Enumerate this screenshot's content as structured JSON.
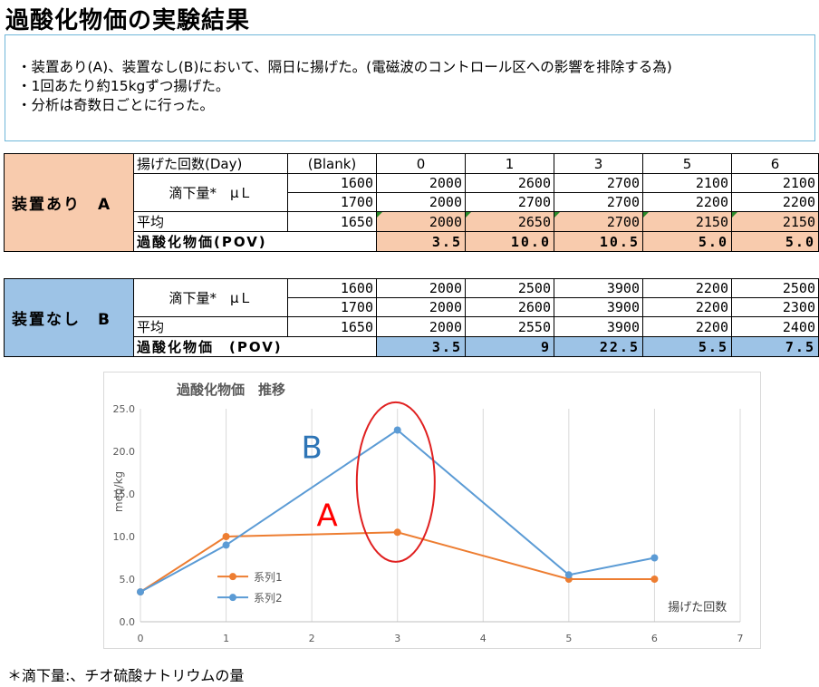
{
  "title": "過酸化物価の実験結果",
  "notes": [
    "・装置あり(A)、装置なし(B)において、隔日に揚げた。(電磁波のコントロール区への影響を排除する為)",
    "・1回あたり約15kgずつ揚げた。",
    "・分析は奇数日ごとに行った。"
  ],
  "table_a": {
    "group_label": "装置あり　A",
    "header_label": "揚げた回数(Day)",
    "blank_label": "(Blank)",
    "days": [
      "0",
      "1",
      "3",
      "5",
      "6"
    ],
    "titration_label": "滴下量*　μＬ",
    "row1": [
      "1600",
      "2000",
      "2600",
      "2700",
      "2100",
      "2100"
    ],
    "row2": [
      "1700",
      "2000",
      "2700",
      "2700",
      "2200",
      "2200"
    ],
    "avg_label": "平均",
    "avg": [
      "1650",
      "2000",
      "2650",
      "2700",
      "2150",
      "2150"
    ],
    "pov_label": "過酸化物価(POV)",
    "pov": [
      "3.5",
      "10.0",
      "10.5",
      "5.0",
      "5.0"
    ]
  },
  "table_b": {
    "group_label": "装置なし　B",
    "titration_label": "滴下量*　μＬ",
    "row1": [
      "1600",
      "2000",
      "2500",
      "3900",
      "2200",
      "2500"
    ],
    "row2": [
      "1700",
      "2000",
      "2600",
      "3900",
      "2200",
      "2300"
    ],
    "avg_label": "平均",
    "avg": [
      "1650",
      "2000",
      "2550",
      "3900",
      "2200",
      "2400"
    ],
    "pov_label": "過酸化物価　(POV)",
    "pov": [
      "3.5",
      "9",
      "22.5",
      "5.5",
      "7.5"
    ]
  },
  "chart_data": {
    "type": "line",
    "title": "過酸化物価　推移",
    "xlabel": "揚げた回数",
    "ylabel": "meq/kg",
    "xlim": [
      0,
      7
    ],
    "ylim": [
      0,
      25
    ],
    "xticks": [
      0,
      1,
      2,
      3,
      4,
      5,
      6,
      7
    ],
    "yticks": [
      0.0,
      5.0,
      10.0,
      15.0,
      20.0,
      25.0
    ],
    "grid": "vertical",
    "legend": "left-bottom",
    "series": [
      {
        "name": "系列1",
        "color": "#ed7d31",
        "x": [
          0,
          1,
          3,
          5,
          6
        ],
        "y": [
          3.5,
          10.0,
          10.5,
          5.0,
          5.0
        ]
      },
      {
        "name": "系列2",
        "color": "#5b9bd5",
        "x": [
          0,
          1,
          3,
          5,
          6
        ],
        "y": [
          3.5,
          9.0,
          22.5,
          5.5,
          7.5
        ]
      }
    ],
    "annotations": [
      {
        "text": "B",
        "color": "#2e75b6"
      },
      {
        "text": "A",
        "color": "#ff0000"
      }
    ],
    "highlight_color": "#e02020"
  },
  "footnote": "＊滴下量:、チオ硫酸ナトリウムの量"
}
